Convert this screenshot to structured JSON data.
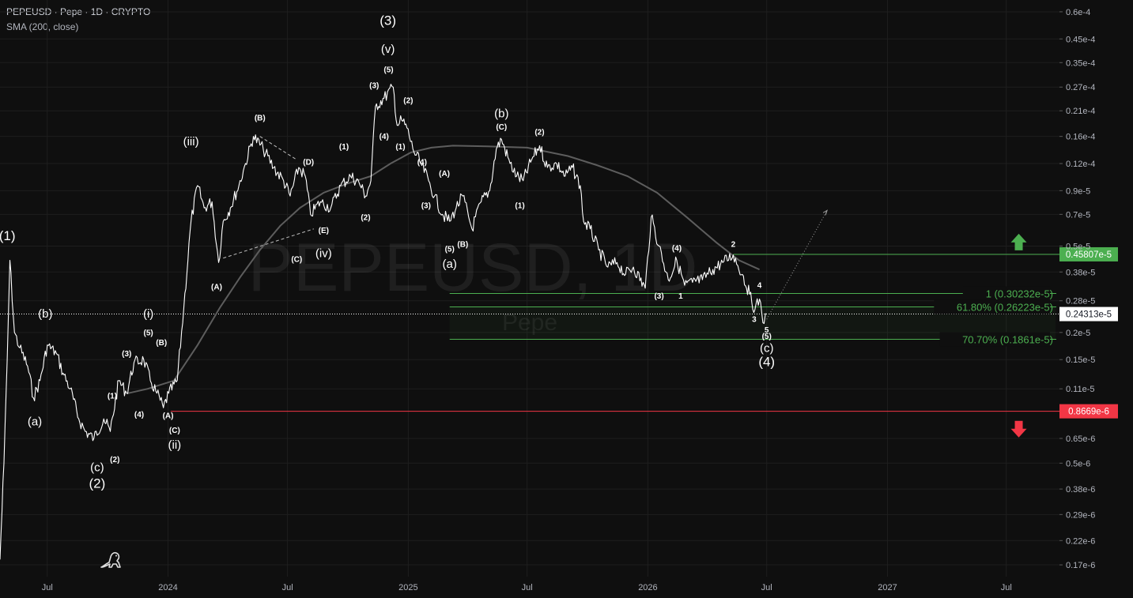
{
  "header": {
    "title": "PEPEUSD · Pepe · 1D · CRYPTO",
    "indicator": "SMA (200, close)"
  },
  "watermark": {
    "symbol": "PEPEUSD, 1D",
    "name": "Pepe"
  },
  "colors": {
    "background": "#0f0f0f",
    "grid": "#1e1e1e",
    "price": "#ffffff",
    "sma": "#5d5d5d",
    "target_line": "#4caf50",
    "fib_line": "#4caf50",
    "stop_line": "#f23645",
    "label_text": "#ffffff"
  },
  "chart_data": {
    "type": "line",
    "scale": "log",
    "title": "PEPEUSD · Pepe · 1D · CRYPTO",
    "xlabel": "",
    "ylabel": "",
    "grid": true,
    "ylim": [
      1.5e-07,
      6.8e-05
    ],
    "xlim": [
      "2023-04-20",
      "2027-09-20"
    ],
    "x_ticks": [
      {
        "date": "2023-07-01",
        "label": "Jul"
      },
      {
        "date": "2024-01-01",
        "label": "2024"
      },
      {
        "date": "2024-07-01",
        "label": "Jul"
      },
      {
        "date": "2025-01-01",
        "label": "2025"
      },
      {
        "date": "2025-07-01",
        "label": "Jul"
      },
      {
        "date": "2026-01-01",
        "label": "2026"
      },
      {
        "date": "2026-07-01",
        "label": "Jul"
      },
      {
        "date": "2027-01-01",
        "label": "2027"
      },
      {
        "date": "2027-07-01",
        "label": "Jul"
      }
    ],
    "y_ticks": [
      {
        "value": 6e-05,
        "label": "0.6e-4"
      },
      {
        "value": 4.5e-05,
        "label": "0.45e-4"
      },
      {
        "value": 3.5e-05,
        "label": "0.35e-4"
      },
      {
        "value": 2.7e-05,
        "label": "0.27e-4"
      },
      {
        "value": 2.1e-05,
        "label": "0.21e-4"
      },
      {
        "value": 1.6e-05,
        "label": "0.16e-4"
      },
      {
        "value": 1.2e-05,
        "label": "0.12e-4"
      },
      {
        "value": 9e-06,
        "label": "0.9e-5"
      },
      {
        "value": 7e-06,
        "label": "0.7e-5"
      },
      {
        "value": 5e-06,
        "label": "0.5e-5"
      },
      {
        "value": 3.8e-06,
        "label": "0.38e-5"
      },
      {
        "value": 2.8e-06,
        "label": "0.28e-5"
      },
      {
        "value": 2e-06,
        "label": "0.2e-5"
      },
      {
        "value": 1.5e-06,
        "label": "0.15e-5"
      },
      {
        "value": 1.1e-06,
        "label": "0.11e-5"
      },
      {
        "value": 6.5e-07,
        "label": "0.65e-6"
      },
      {
        "value": 5e-07,
        "label": "0.5e-6"
      },
      {
        "value": 3.8e-07,
        "label": "0.38e-6"
      },
      {
        "value": 2.9e-07,
        "label": "0.29e-6"
      },
      {
        "value": 2.2e-07,
        "label": "0.22e-6"
      },
      {
        "value": 1.7e-07,
        "label": "0.17e-6"
      }
    ],
    "series": [
      {
        "name": "PEPEUSD",
        "points": [
          [
            "2023-04-20",
            1.8e-07
          ],
          [
            "2023-04-26",
            5e-07
          ],
          [
            "2023-05-01",
            1.5e-06
          ],
          [
            "2023-05-05",
            4.3e-06
          ],
          [
            "2023-05-12",
            2e-06
          ],
          [
            "2023-05-20",
            1.7e-06
          ],
          [
            "2023-06-01",
            1.4e-06
          ],
          [
            "2023-06-10",
            1e-06
          ],
          [
            "2023-06-20",
            1.2e-06
          ],
          [
            "2023-07-01",
            1.75e-06
          ],
          [
            "2023-07-15",
            1.6e-06
          ],
          [
            "2023-07-25",
            1.3e-06
          ],
          [
            "2023-08-05",
            1.1e-06
          ],
          [
            "2023-08-18",
            8e-07
          ],
          [
            "2023-08-28",
            7e-07
          ],
          [
            "2023-09-10",
            6.5e-07
          ],
          [
            "2023-09-25",
            8e-07
          ],
          [
            "2023-10-05",
            7e-07
          ],
          [
            "2023-10-18",
            1.2e-06
          ],
          [
            "2023-10-30",
            1.05e-06
          ],
          [
            "2023-11-10",
            1.45e-06
          ],
          [
            "2023-11-25",
            1.5e-06
          ],
          [
            "2023-12-05",
            1.2e-06
          ],
          [
            "2023-12-15",
            1.05e-06
          ],
          [
            "2023-12-25",
            9e-07
          ],
          [
            "2024-01-02",
            1.05e-06
          ],
          [
            "2024-01-15",
            1.2e-06
          ],
          [
            "2024-01-25",
            2.6e-06
          ],
          [
            "2024-02-05",
            6.5e-06
          ],
          [
            "2024-02-15",
            9.5e-06
          ],
          [
            "2024-02-25",
            7.5e-06
          ],
          [
            "2024-03-08",
            8e-06
          ],
          [
            "2024-03-18",
            4.2e-06
          ],
          [
            "2024-03-25",
            6.5e-06
          ],
          [
            "2024-04-05",
            7.5e-06
          ],
          [
            "2024-04-18",
            9.5e-06
          ],
          [
            "2024-04-28",
            1.2e-05
          ],
          [
            "2024-05-10",
            1.6e-05
          ],
          [
            "2024-05-25",
            1.4e-05
          ],
          [
            "2024-06-10",
            1.15e-05
          ],
          [
            "2024-06-25",
            1e-05
          ],
          [
            "2024-07-05",
            8.5e-06
          ],
          [
            "2024-07-18",
            1.15e-05
          ],
          [
            "2024-07-28",
            1.05e-05
          ],
          [
            "2024-08-05",
            7e-06
          ],
          [
            "2024-08-20",
            8e-06
          ],
          [
            "2024-09-05",
            7.5e-06
          ],
          [
            "2024-09-20",
            9.5e-06
          ],
          [
            "2024-10-05",
            1.05e-05
          ],
          [
            "2024-10-18",
            9.8e-06
          ],
          [
            "2024-10-28",
            8.5e-06
          ],
          [
            "2024-11-05",
            1e-05
          ],
          [
            "2024-11-12",
            2.2e-05
          ],
          [
            "2024-11-25",
            2.4e-05
          ],
          [
            "2024-12-09",
            2.7e-05
          ],
          [
            "2024-12-15",
            1.8e-05
          ],
          [
            "2024-12-22",
            1.9e-05
          ],
          [
            "2024-12-30",
            1.75e-05
          ],
          [
            "2025-01-08",
            1.4e-05
          ],
          [
            "2025-01-20",
            1.2e-05
          ],
          [
            "2025-02-01",
            1e-05
          ],
          [
            "2025-02-10",
            8.5e-06
          ],
          [
            "2025-02-22",
            7e-06
          ],
          [
            "2025-03-05",
            6.5e-06
          ],
          [
            "2025-03-15",
            7.5e-06
          ],
          [
            "2025-03-25",
            8.5e-06
          ],
          [
            "2025-04-08",
            6e-06
          ],
          [
            "2025-04-22",
            8e-06
          ],
          [
            "2025-05-05",
            9e-06
          ],
          [
            "2025-05-15",
            1.4e-05
          ],
          [
            "2025-05-23",
            1.55e-05
          ],
          [
            "2025-06-05",
            1.2e-05
          ],
          [
            "2025-06-15",
            1.05e-05
          ],
          [
            "2025-06-25",
            1e-05
          ],
          [
            "2025-07-08",
            1.25e-05
          ],
          [
            "2025-07-20",
            1.45e-05
          ],
          [
            "2025-08-01",
            1.15e-05
          ],
          [
            "2025-08-15",
            1.2e-05
          ],
          [
            "2025-08-28",
            1.05e-05
          ],
          [
            "2025-09-08",
            1.15e-05
          ],
          [
            "2025-09-20",
            9.5e-06
          ],
          [
            "2025-09-25",
            6.5e-06
          ],
          [
            "2025-10-05",
            6e-06
          ],
          [
            "2025-10-18",
            4.8e-06
          ],
          [
            "2025-11-01",
            4e-06
          ],
          [
            "2025-11-15",
            4.2e-06
          ],
          [
            "2025-11-28",
            3.7e-06
          ],
          [
            "2025-12-10",
            4e-06
          ],
          [
            "2025-12-28",
            3.2e-06
          ],
          [
            "2026-01-06",
            6.8e-06
          ],
          [
            "2026-01-18",
            5e-06
          ],
          [
            "2026-02-01",
            3.5e-06
          ],
          [
            "2026-02-14",
            4.3e-06
          ],
          [
            "2026-02-26",
            3.3e-06
          ],
          [
            "2026-03-10",
            3.4e-06
          ],
          [
            "2026-03-25",
            3.5e-06
          ],
          [
            "2026-04-10",
            3.9e-06
          ],
          [
            "2026-04-25",
            4.2e-06
          ],
          [
            "2026-05-11",
            4.55e-06
          ],
          [
            "2026-05-25",
            3.7e-06
          ],
          [
            "2026-06-05",
            3e-06
          ],
          [
            "2026-06-13",
            2.55e-06
          ],
          [
            "2026-06-20",
            2.85e-06
          ],
          [
            "2026-06-27",
            2.2e-06
          ],
          [
            "2026-07-01",
            2.43e-06
          ]
        ]
      },
      {
        "name": "SMA (200, close)",
        "points": [
          [
            "2023-11-01",
            1.05e-06
          ],
          [
            "2023-12-01",
            1.1e-06
          ],
          [
            "2024-01-10",
            1.2e-06
          ],
          [
            "2024-02-15",
            1.75e-06
          ],
          [
            "2024-03-20",
            2.6e-06
          ],
          [
            "2024-04-20",
            3.6e-06
          ],
          [
            "2024-05-20",
            4.8e-06
          ],
          [
            "2024-06-20",
            6.2e-06
          ],
          [
            "2024-07-20",
            7.5e-06
          ],
          [
            "2024-08-25",
            8.8e-06
          ],
          [
            "2024-09-30",
            9.7e-06
          ],
          [
            "2024-11-05",
            1.05e-05
          ],
          [
            "2024-12-05",
            1.2e-05
          ],
          [
            "2025-01-05",
            1.35e-05
          ],
          [
            "2025-02-05",
            1.42e-05
          ],
          [
            "2025-03-10",
            1.45e-05
          ],
          [
            "2025-05-01",
            1.44e-05
          ],
          [
            "2025-07-01",
            1.42e-05
          ],
          [
            "2025-09-01",
            1.3e-05
          ],
          [
            "2025-10-15",
            1.18e-05
          ],
          [
            "2025-12-01",
            1.05e-05
          ],
          [
            "2026-01-15",
            8.8e-06
          ],
          [
            "2026-03-01",
            6.8e-06
          ],
          [
            "2026-04-15",
            5.2e-06
          ],
          [
            "2026-05-20",
            4.3e-06
          ],
          [
            "2026-06-20",
            3.9e-06
          ]
        ]
      },
      {
        "name": "projection",
        "points": [
          [
            "2026-07-01",
            2.3e-06
          ],
          [
            "2026-10-01",
            7.3e-06
          ]
        ]
      }
    ],
    "horizontal_levels": [
      {
        "value": 4.5807e-06,
        "label": "0.45807e-5",
        "from": "2026-05-11",
        "kind": "target"
      },
      {
        "value": 3.0232e-06,
        "label": "1 (0.30232e-5)",
        "from": "2025-03-05",
        "kind": "fib"
      },
      {
        "value": 2.6223e-06,
        "label": "61.80% (0.26223e-5)",
        "from": "2025-03-05",
        "kind": "fib"
      },
      {
        "value": 1.861e-06,
        "label": "70.70% (0.1861e-5)",
        "from": "2025-03-05",
        "kind": "fib"
      },
      {
        "value": 8.669e-07,
        "label": "0.8669e-6",
        "from": "2024-01-05",
        "kind": "stop"
      }
    ],
    "last_price": {
      "value": 2.4313e-06,
      "label": "0.24313e-5"
    },
    "fib_zone": {
      "from": "2025-03-05",
      "low": 1.861e-06,
      "high": 2.6223e-06
    },
    "trendlines": [
      {
        "from": [
          "2024-03-25",
          4.4e-06
        ],
        "to": [
          "2024-08-10",
          6e-06
        ]
      },
      {
        "from": [
          "2024-05-20",
          1.6e-05
        ],
        "to": [
          "2024-07-15",
          1.25e-05
        ]
      }
    ],
    "wave_labels": [
      {
        "text": "(1)",
        "date": "2023-05-01",
        "price": 5.6e-06,
        "size": "l"
      },
      {
        "text": "(a)",
        "date": "2023-06-12",
        "price": 7.8e-07,
        "size": "m"
      },
      {
        "text": "(b)",
        "date": "2023-06-28",
        "price": 2.45e-06,
        "size": "m"
      },
      {
        "text": "(c)",
        "date": "2023-09-15",
        "price": 4.8e-07,
        "size": "m"
      },
      {
        "text": "(2)",
        "date": "2023-09-15",
        "price": 4.05e-07,
        "size": "l"
      },
      {
        "text": "(1)",
        "date": "2023-10-08",
        "price": 1.02e-06,
        "size": "s"
      },
      {
        "text": "(2)",
        "date": "2023-10-12",
        "price": 5.2e-07,
        "size": "s"
      },
      {
        "text": "(3)",
        "date": "2023-10-30",
        "price": 1.6e-06,
        "size": "s"
      },
      {
        "text": "(4)",
        "date": "2023-11-18",
        "price": 8.4e-07,
        "size": "s"
      },
      {
        "text": "(i)",
        "date": "2023-12-02",
        "price": 2.45e-06,
        "size": "m"
      },
      {
        "text": "(5)",
        "date": "2023-12-02",
        "price": 2e-06,
        "size": "s"
      },
      {
        "text": "(B)",
        "date": "2023-12-22",
        "price": 1.8e-06,
        "size": "s"
      },
      {
        "text": "(A)",
        "date": "2024-01-01",
        "price": 8.3e-07,
        "size": "s"
      },
      {
        "text": "(C)",
        "date": "2024-01-11",
        "price": 7.1e-07,
        "size": "s"
      },
      {
        "text": "(ii)",
        "date": "2024-01-11",
        "price": 6.1e-07,
        "size": "m"
      },
      {
        "text": "(iii)",
        "date": "2024-02-05",
        "price": 1.52e-05,
        "size": "m"
      },
      {
        "text": "(A)",
        "date": "2024-03-15",
        "price": 3.25e-06,
        "size": "s"
      },
      {
        "text": "(B)",
        "date": "2024-05-20",
        "price": 1.95e-05,
        "size": "s"
      },
      {
        "text": "(D)",
        "date": "2024-08-02",
        "price": 1.22e-05,
        "size": "s"
      },
      {
        "text": "(C)",
        "date": "2024-07-15",
        "price": 4.35e-06,
        "size": "s"
      },
      {
        "text": "(E)",
        "date": "2024-08-25",
        "price": 5.9e-06,
        "size": "s"
      },
      {
        "text": "(iv)",
        "date": "2024-08-25",
        "price": 4.65e-06,
        "size": "m"
      },
      {
        "text": "(1)",
        "date": "2024-09-25",
        "price": 1.44e-05,
        "size": "s"
      },
      {
        "text": "(2)",
        "date": "2024-10-28",
        "price": 6.8e-06,
        "size": "s"
      },
      {
        "text": "(3)",
        "date": "2024-11-10",
        "price": 2.75e-05,
        "size": "s"
      },
      {
        "text": "(3)",
        "date": "2024-12-01",
        "price": 5.5e-05,
        "size": "l"
      },
      {
        "text": "(v)",
        "date": "2024-12-01",
        "price": 4.05e-05,
        "size": "m"
      },
      {
        "text": "(5)",
        "date": "2024-12-02",
        "price": 3.25e-05,
        "size": "s"
      },
      {
        "text": "(4)",
        "date": "2024-11-25",
        "price": 1.6e-05,
        "size": "s"
      },
      {
        "text": "(2)",
        "date": "2025-01-01",
        "price": 2.35e-05,
        "size": "s"
      },
      {
        "text": "(1)",
        "date": "2024-12-20",
        "price": 1.44e-05,
        "size": "s"
      },
      {
        "text": "(4)",
        "date": "2025-01-22",
        "price": 1.22e-05,
        "size": "s"
      },
      {
        "text": "(A)",
        "date": "2025-02-25",
        "price": 1.08e-05,
        "size": "s"
      },
      {
        "text": "(3)",
        "date": "2025-01-28",
        "price": 7.7e-06,
        "size": "s"
      },
      {
        "text": "(5)",
        "date": "2025-03-05",
        "price": 4.85e-06,
        "size": "s"
      },
      {
        "text": "(B)",
        "date": "2025-03-25",
        "price": 5.1e-06,
        "size": "s"
      },
      {
        "text": "(a)",
        "date": "2025-03-05",
        "price": 4.15e-06,
        "size": "m"
      },
      {
        "text": "(b)",
        "date": "2025-05-23",
        "price": 2.05e-05,
        "size": "m"
      },
      {
        "text": "(C)",
        "date": "2025-05-23",
        "price": 1.77e-05,
        "size": "s"
      },
      {
        "text": "(2)",
        "date": "2025-07-20",
        "price": 1.68e-05,
        "size": "s"
      },
      {
        "text": "(1)",
        "date": "2025-06-20",
        "price": 7.7e-06,
        "size": "s"
      },
      {
        "text": "(4)",
        "date": "2026-02-14",
        "price": 4.9e-06,
        "size": "s"
      },
      {
        "text": "2",
        "date": "2026-05-11",
        "price": 5.1e-06,
        "size": "s"
      },
      {
        "text": "4",
        "date": "2026-06-20",
        "price": 3.3e-06,
        "size": "s"
      },
      {
        "text": "(3)",
        "date": "2026-01-18",
        "price": 2.95e-06,
        "size": "s"
      },
      {
        "text": "1",
        "date": "2026-02-20",
        "price": 2.95e-06,
        "size": "s"
      },
      {
        "text": "3",
        "date": "2026-06-12",
        "price": 2.3e-06,
        "size": "s"
      },
      {
        "text": "5",
        "date": "2026-07-01",
        "price": 2.06e-06,
        "size": "s"
      },
      {
        "text": "(5)",
        "date": "2026-07-01",
        "price": 1.92e-06,
        "size": "s"
      },
      {
        "text": "(c)",
        "date": "2026-07-01",
        "price": 1.7e-06,
        "size": "m"
      },
      {
        "text": "(4)",
        "date": "2026-07-01",
        "price": 1.47e-06,
        "size": "l"
      }
    ],
    "arrows": [
      {
        "direction": "up",
        "color": "#4caf50",
        "date": "2027-07-20",
        "price": 5.2e-06
      },
      {
        "direction": "down",
        "color": "#f23645",
        "date": "2027-07-20",
        "price": 7.2e-07
      }
    ]
  }
}
